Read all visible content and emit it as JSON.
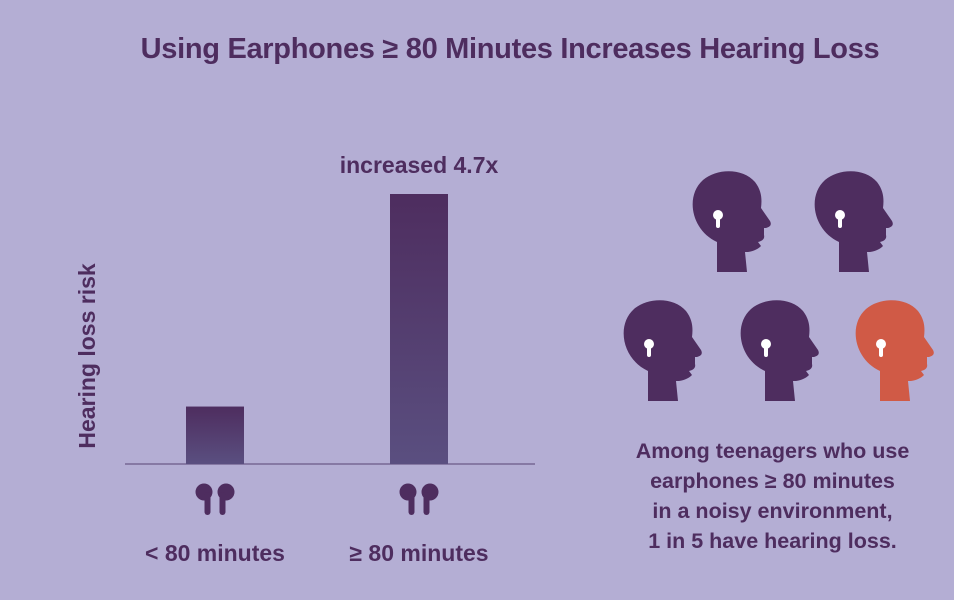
{
  "title": "Using Earphones ≥ 80 Minutes Increases Hearing Loss",
  "colors": {
    "background": "#b4aed4",
    "text": "#4e2d5f",
    "bar_top": "#4e2d5f",
    "bar_bottom": "#5a4f80",
    "head": "#4e2d5f",
    "head_highlight": "#d05a46"
  },
  "chart_data": {
    "type": "bar",
    "ylabel": "Hearing loss risk",
    "categories": [
      "< 80 minutes",
      "≥ 80 minutes"
    ],
    "values": [
      1,
      4.7
    ],
    "ylim": [
      0,
      4.7
    ],
    "annotations": [
      {
        "category": "≥ 80 minutes",
        "text": "increased 4.7x"
      }
    ],
    "category_icons": [
      "earbuds-icon",
      "earbuds-icon"
    ],
    "grid": false
  },
  "infographic": {
    "heads_total": 5,
    "heads_highlighted": 1,
    "head_icon": "head-with-earbud-icon",
    "caption_lines": [
      "Among teenagers who use",
      "earphones ≥ 80 minutes",
      "in a noisy environment,",
      "1 in 5 have hearing loss."
    ]
  }
}
